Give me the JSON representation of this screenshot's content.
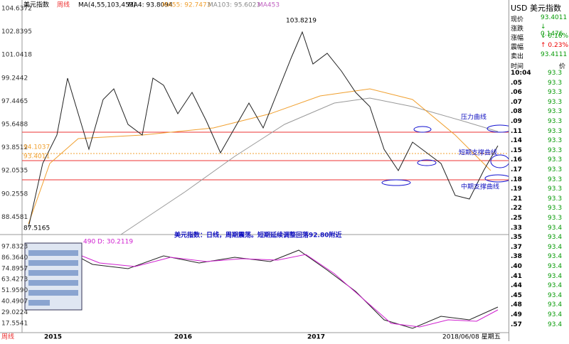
{
  "header": {
    "title": "美元指数",
    "period": "周线",
    "ma_params": "MA(4,55,103,453)",
    "ma4": "MA4: 93.8094",
    "ma55": "MA55: 92.7473",
    "ma103": "MA103: 95.6023",
    "ma453": "MA453"
  },
  "price_axis": [
    "104.6372",
    "102.8395",
    "101.0418",
    "99.2442",
    "97.4465",
    "95.6488",
    "93.8512",
    "92.0535",
    "90.2558",
    "88.4581"
  ],
  "indicator_axis": [
    "97.8323",
    "86.3640",
    "74.8957",
    "63.4273",
    "51.9590",
    "40.4907",
    "29.0224",
    "17.5541"
  ],
  "annotations": {
    "high": "103.8219",
    "low": "87.5165",
    "level1": "94.1037",
    "level2": "93.4011",
    "pressure": "压力曲线",
    "short_support": "短期支撑曲线",
    "mid_support": "中期支撑曲线",
    "comment": "美元指数：日线，周期震荡。短期延续调整回落92.80附近"
  },
  "indicator_label": "490 D: 30.2119",
  "x_axis": [
    "2015",
    "2016",
    "2017",
    "2018/06/08 星期五"
  ],
  "quote": {
    "title": "USD 美元指数",
    "rows": [
      [
        "现价",
        "93.4011"
      ],
      [
        "涨跌",
        "↓ 0.1476"
      ],
      [
        "涨幅",
        "↓ 0.16%"
      ],
      [
        "震幅",
        "↑ 0.23%"
      ],
      [
        "卖出",
        "93.4111"
      ]
    ]
  },
  "ticks": {
    "header": [
      "时间",
      "价"
    ],
    "rows": [
      [
        "10:04",
        "93.3"
      ],
      [
        ".05",
        "93.3"
      ],
      [
        ".06",
        "93.3"
      ],
      [
        ".07",
        "93.3"
      ],
      [
        ".08",
        "93.3"
      ],
      [
        ".09",
        "93.3"
      ],
      [
        ".11",
        "93.3"
      ],
      [
        ".14",
        "93.3"
      ],
      [
        ".15",
        "93.3"
      ],
      [
        ".16",
        "93.3"
      ],
      [
        ".17",
        "93.3"
      ],
      [
        ".18",
        "93.3"
      ],
      [
        ".19",
        "93.3"
      ],
      [
        ".21",
        "93.3"
      ],
      [
        ".22",
        "93.3"
      ],
      [
        ".25",
        "93.3"
      ],
      [
        ".33",
        "93.4"
      ],
      [
        ".35",
        "93.4"
      ],
      [
        ".37",
        "93.4"
      ],
      [
        ".38",
        "93.4"
      ],
      [
        ".40",
        "93.4"
      ],
      [
        ".41",
        "93.4"
      ],
      [
        ".44",
        "93.4"
      ],
      [
        ".45",
        "93.4"
      ],
      [
        ".48",
        "93.4"
      ],
      [
        ".49",
        "93.4"
      ],
      [
        ".57",
        "93.4"
      ]
    ]
  }
}
